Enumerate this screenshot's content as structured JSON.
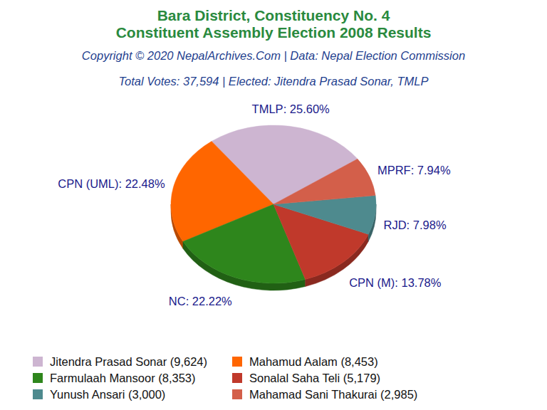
{
  "chart_data": {
    "type": "pie",
    "title": [
      "Bara District, Constituency No. 4",
      "Constituent Assembly Election 2008 Results"
    ],
    "subtitle": "Copyright © 2020 NepalArchives.Com | Data: Nepal Election Commission",
    "annotation": "Total Votes: 37,594 | Elected: Jitendra Prasad Sonar, TMLP",
    "categories": [
      "TMLP",
      "CPN (UML)",
      "NC",
      "CPN (M)",
      "RJD",
      "MPRF"
    ],
    "values": [
      25.6,
      22.48,
      22.22,
      13.78,
      7.98,
      7.94
    ],
    "value_labels": [
      "25.60%",
      "22.48%",
      "22.22%",
      "13.78%",
      "7.98%",
      "7.94%"
    ],
    "colors": [
      "#cdb5d1",
      "#ff6600",
      "#2e861c",
      "#c0392b",
      "#4e8a8e",
      "#d35f4a"
    ],
    "legend_labels": [
      "Jitendra Prasad Sonar (9,624)",
      "Mahamud Aalam (8,453)",
      "Farmulaah Mansoor (8,353)",
      "Sonalal Saha Teli (5,179)",
      "Yunush Ansari (3,000)",
      "Mahamad Sani Thakurai (2,985)"
    ],
    "data_labels": true,
    "legend": "bottom"
  }
}
